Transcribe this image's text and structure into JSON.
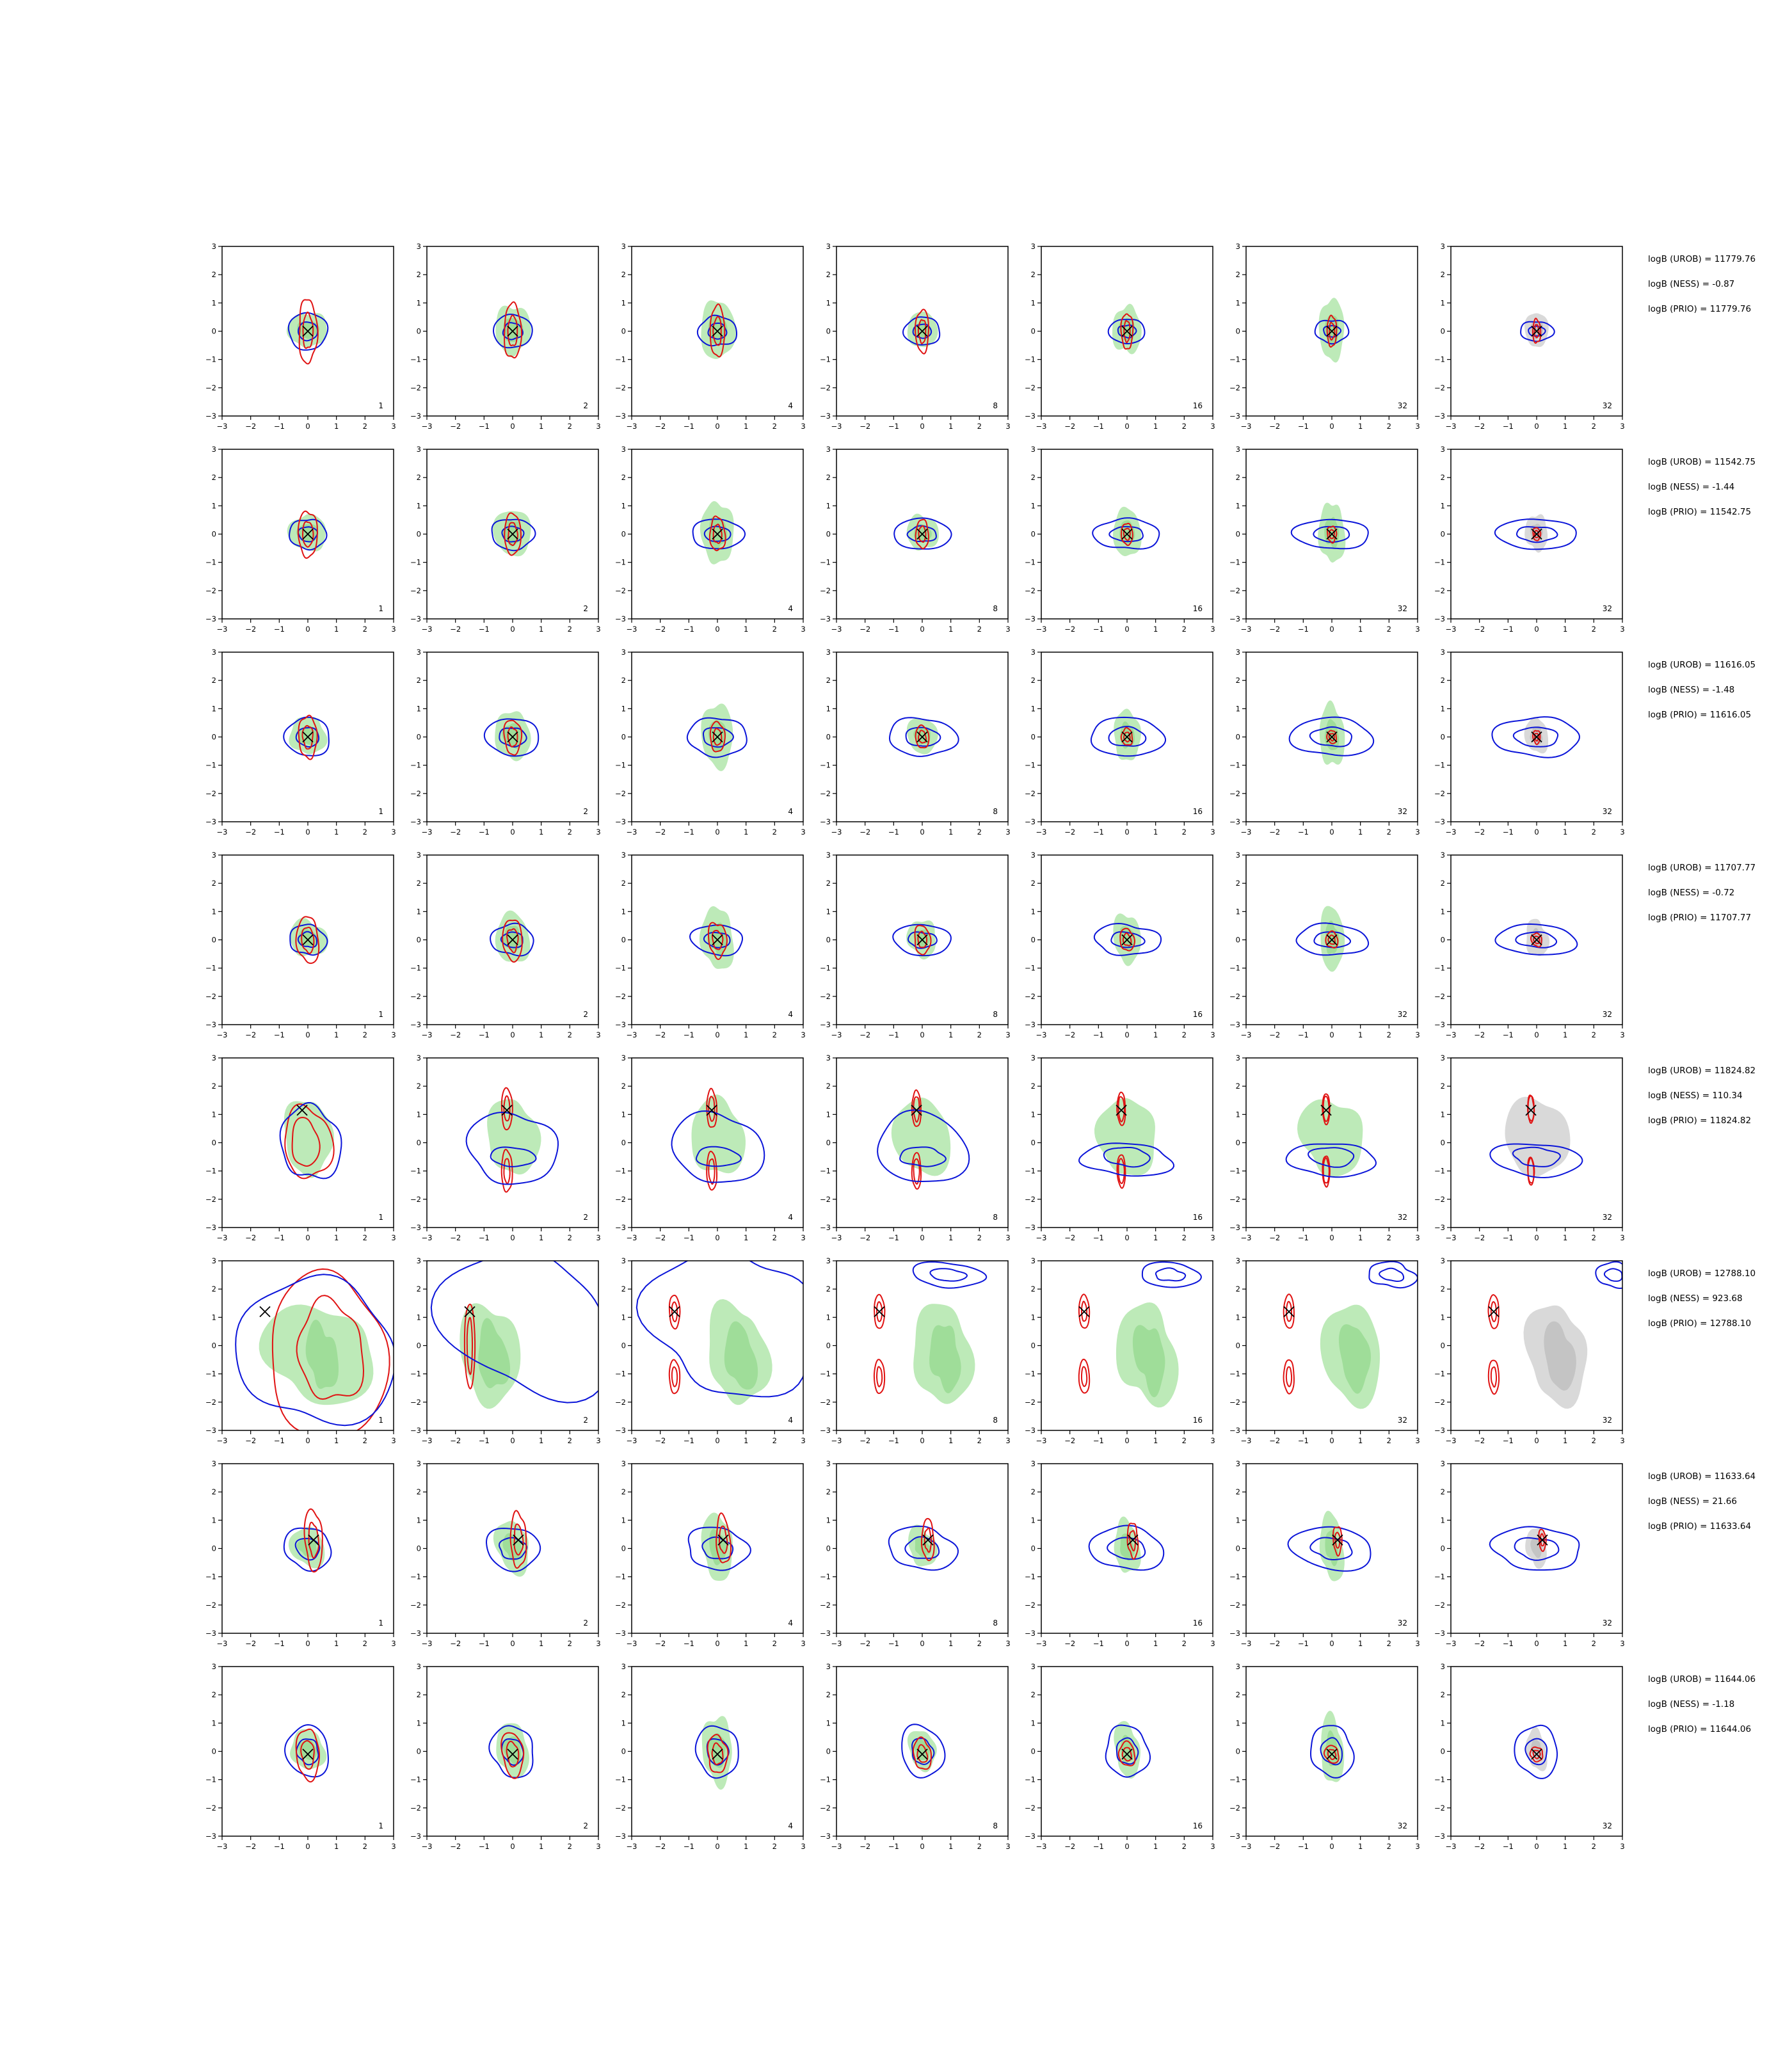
{
  "chart_data": {
    "type": "contour-grid",
    "xlim": [
      -3,
      3
    ],
    "ylim": [
      -3,
      3
    ],
    "ticks": [
      "−3",
      "−2",
      "−1",
      "0",
      "1",
      "2",
      "3"
    ],
    "tick_values": [
      -3,
      -2,
      -1,
      0,
      1,
      2,
      3
    ],
    "column_labels": [
      "1",
      "2",
      "4",
      "8",
      "16",
      "32",
      "32"
    ],
    "colors": {
      "blue": "#0b15d9",
      "red": "#e01313",
      "green_fill": "#bdeab8",
      "green_fill_dark": "#9fdd99",
      "gray_fill": "#d9d9d9",
      "gray_fill_dark": "#c4c4c4",
      "marker": "#000000",
      "frame": "#000000"
    },
    "rows": [
      {
        "stats": [
          "logB (UROB) = 11779.76",
          "logB (NESS) = -0.87",
          "logB (PRIO) = 11779.76"
        ],
        "marker": [
          0.0,
          0.0
        ],
        "blue_r": [
          0.65,
          0.9
        ],
        "red_r": [
          0.3,
          1.2
        ],
        "width_trend": "shrinking"
      },
      {
        "stats": [
          "logB (UROB) = 11542.75",
          "logB (NESS) = -1.44",
          "logB (PRIO) = 11542.75"
        ],
        "marker": [
          0.0,
          0.0
        ],
        "blue_r": [
          0.6,
          0.75
        ],
        "red_r": [
          0.3,
          0.9
        ],
        "width_trend": "growing"
      },
      {
        "stats": [
          "logB (UROB) = 11616.05",
          "logB (NESS) = -1.48",
          "logB (PRIO) = 11616.05"
        ],
        "marker": [
          0.0,
          0.0
        ],
        "blue_r": [
          0.75,
          0.75
        ],
        "red_r": [
          0.3,
          0.8
        ],
        "width_trend": "growing"
      },
      {
        "stats": [
          "logB (UROB) = 11707.77",
          "logB (NESS) = -0.72",
          "logB (PRIO) = 11707.77"
        ],
        "marker": [
          0.0,
          0.0
        ],
        "blue_r": [
          0.6,
          0.9
        ],
        "red_r": [
          0.35,
          0.9
        ],
        "width_trend": "growing"
      },
      {
        "stats": [
          "logB (UROB) = 11824.82",
          "logB (NESS) = 110.34",
          "logB (PRIO) = 11824.82"
        ],
        "marker": [
          -0.2,
          1.15
        ],
        "blue_r": [
          1.0,
          1.4
        ],
        "red_r": [
          0.6,
          1.6
        ],
        "width_trend": "bimodal"
      },
      {
        "stats": [
          "logB (UROB) = 12788.10",
          "logB (NESS) = 923.68",
          "logB (PRIO) = 12788.10"
        ],
        "marker": [
          -1.5,
          1.2
        ],
        "blue_r": [
          2.5,
          2.5
        ],
        "red_r": [
          1.5,
          3.0
        ],
        "width_trend": "multimodal"
      },
      {
        "stats": [
          "logB (UROB) = 11633.64",
          "logB (NESS) = 21.66",
          "logB (PRIO) = 11633.64"
        ],
        "marker": [
          0.2,
          0.3
        ],
        "blue_r": [
          0.8,
          0.8
        ],
        "red_r": [
          0.3,
          1.1
        ],
        "width_trend": "growing"
      },
      {
        "stats": [
          "logB (UROB) = 11644.06",
          "logB (NESS) = -1.18",
          "logB (PRIO) = 11644.06"
        ],
        "marker": [
          0.0,
          -0.1
        ],
        "blue_r": [
          0.75,
          0.8
        ],
        "red_r": [
          0.4,
          0.9
        ],
        "width_trend": "stable"
      }
    ]
  }
}
